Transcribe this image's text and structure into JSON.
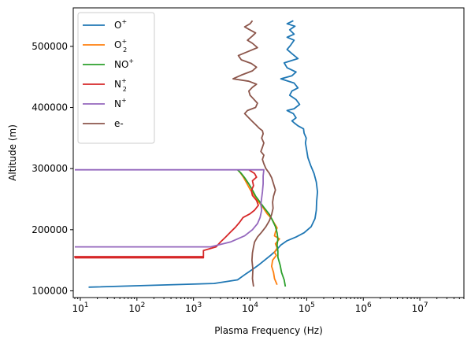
{
  "chart_data": {
    "type": "line",
    "title": "",
    "xlabel": "Plasma Frequency (Hz)",
    "ylabel": "Altitude (m)",
    "xscale": "log",
    "xlim": [
      7.5,
      60000000
    ],
    "ylim": [
      89000,
      563000
    ],
    "grid": false,
    "legend_position": "top-left",
    "x_ticks": [
      {
        "value": 10,
        "base": "10",
        "exp": "1"
      },
      {
        "value": 100,
        "base": "10",
        "exp": "2"
      },
      {
        "value": 1000,
        "base": "10",
        "exp": "3"
      },
      {
        "value": 10000,
        "base": "10",
        "exp": "4"
      },
      {
        "value": 100000,
        "base": "10",
        "exp": "5"
      },
      {
        "value": 1000000,
        "base": "10",
        "exp": "6"
      },
      {
        "value": 10000000,
        "base": "10",
        "exp": "7"
      }
    ],
    "y_ticks": [
      {
        "value": 100000,
        "label": "100000"
      },
      {
        "value": 200000,
        "label": "200000"
      },
      {
        "value": 300000,
        "label": "300000"
      },
      {
        "value": 400000,
        "label": "400000"
      },
      {
        "value": 500000,
        "label": "500000"
      }
    ],
    "series": [
      {
        "name": "O⁺",
        "color": "#1f77b4",
        "points": [
          [
            14,
            106000
          ],
          [
            2300,
            112000
          ],
          [
            6000,
            118000
          ],
          [
            8500,
            128000
          ],
          [
            11000,
            135000
          ],
          [
            14000,
            142000
          ],
          [
            18000,
            150000
          ],
          [
            23000,
            158000
          ],
          [
            28000,
            165000
          ],
          [
            35000,
            175000
          ],
          [
            45000,
            182000
          ],
          [
            65000,
            188000
          ],
          [
            90000,
            195000
          ],
          [
            120000,
            205000
          ],
          [
            140000,
            218000
          ],
          [
            148000,
            232000
          ],
          [
            150000,
            246000
          ],
          [
            155000,
            262000
          ],
          [
            148000,
            278000
          ],
          [
            135000,
            292000
          ],
          [
            118000,
            305000
          ],
          [
            105000,
            318000
          ],
          [
            100000,
            330000
          ],
          [
            95000,
            342000
          ],
          [
            98000,
            350000
          ],
          [
            90000,
            358000
          ],
          [
            88000,
            365000
          ],
          [
            70000,
            370000
          ],
          [
            60000,
            375000
          ],
          [
            55000,
            378000
          ],
          [
            65000,
            383000
          ],
          [
            58000,
            390000
          ],
          [
            45000,
            395000
          ],
          [
            60000,
            398000
          ],
          [
            75000,
            405000
          ],
          [
            65000,
            413000
          ],
          [
            50000,
            420000
          ],
          [
            55000,
            427000
          ],
          [
            70000,
            432000
          ],
          [
            60000,
            440000
          ],
          [
            35000,
            447000
          ],
          [
            55000,
            452000
          ],
          [
            65000,
            458000
          ],
          [
            45000,
            465000
          ],
          [
            40000,
            473000
          ],
          [
            70000,
            480000
          ],
          [
            55000,
            488000
          ],
          [
            45000,
            495000
          ],
          [
            52000,
            502000
          ],
          [
            60000,
            510000
          ],
          [
            45000,
            515000
          ],
          [
            60000,
            520000
          ],
          [
            50000,
            527000
          ],
          [
            62000,
            533000
          ],
          [
            45000,
            537000
          ],
          [
            58000,
            542000
          ]
        ]
      },
      {
        "name": "O₂⁺",
        "color": "#ff7f0e",
        "points": [
          [
            30000,
            110000
          ],
          [
            27000,
            120000
          ],
          [
            26000,
            130000
          ],
          [
            24000,
            140000
          ],
          [
            25000,
            150000
          ],
          [
            29000,
            158000
          ],
          [
            27000,
            163000
          ],
          [
            30000,
            170000
          ],
          [
            28000,
            177000
          ],
          [
            33000,
            185000
          ],
          [
            27000,
            190000
          ],
          [
            28000,
            196000
          ],
          [
            30000,
            203000
          ],
          [
            27000,
            210000
          ],
          [
            24000,
            218000
          ],
          [
            20000,
            226000
          ],
          [
            17000,
            236000
          ],
          [
            14000,
            246000
          ],
          [
            12000,
            256000
          ],
          [
            10000,
            266000
          ],
          [
            8500,
            278000
          ],
          [
            7500,
            287000
          ],
          [
            6500,
            295000
          ],
          [
            6000,
            298000
          ]
        ]
      },
      {
        "name": "NO⁺",
        "color": "#2ca02c",
        "points": [
          [
            42000,
            107000
          ],
          [
            40000,
            118000
          ],
          [
            36000,
            130000
          ],
          [
            34000,
            142000
          ],
          [
            31000,
            155000
          ],
          [
            31000,
            165000
          ],
          [
            30000,
            175000
          ],
          [
            31000,
            185000
          ],
          [
            30000,
            195000
          ],
          [
            28000,
            205000
          ],
          [
            25000,
            215000
          ],
          [
            22000,
            225000
          ],
          [
            18000,
            235000
          ],
          [
            15000,
            245000
          ],
          [
            12500,
            255000
          ],
          [
            11000,
            265000
          ],
          [
            9500,
            275000
          ],
          [
            8000,
            285000
          ],
          [
            7000,
            292000
          ],
          [
            6000,
            298000
          ]
        ]
      },
      {
        "name": "N₂⁺",
        "color": "#d62728",
        "points": [
          [
            8,
            154000
          ],
          [
            1500,
            154000
          ],
          [
            1500,
            155000
          ],
          [
            8,
            155000
          ],
          [
            8,
            156000
          ],
          [
            1500,
            156000
          ],
          [
            1500,
            166000
          ],
          [
            2500,
            172000
          ],
          [
            3000,
            180000
          ],
          [
            3700,
            188000
          ],
          [
            4500,
            196000
          ],
          [
            5500,
            204000
          ],
          [
            6500,
            212000
          ],
          [
            7500,
            220000
          ],
          [
            10000,
            226000
          ],
          [
            12000,
            232000
          ],
          [
            14000,
            240000
          ],
          [
            13000,
            248000
          ],
          [
            11000,
            256000
          ],
          [
            10500,
            264000
          ],
          [
            11500,
            272000
          ],
          [
            11000,
            280000
          ],
          [
            13000,
            286000
          ],
          [
            12000,
            292000
          ],
          [
            9500,
            298000
          ]
        ]
      },
      {
        "name": "N⁺",
        "color": "#9467bd",
        "points": [
          [
            8,
            172000
          ],
          [
            2000,
            172000
          ],
          [
            4500,
            180000
          ],
          [
            8000,
            190000
          ],
          [
            11000,
            200000
          ],
          [
            13500,
            210000
          ],
          [
            15000,
            220000
          ],
          [
            16000,
            232000
          ],
          [
            15500,
            242000
          ],
          [
            16000,
            252000
          ],
          [
            16500,
            262000
          ],
          [
            17000,
            275000
          ],
          [
            17000,
            288000
          ],
          [
            17500,
            298000
          ],
          [
            8,
            298000
          ]
        ]
      },
      {
        "name": "e-",
        "color": "#8c564b",
        "points": [
          [
            11500,
            107000
          ],
          [
            11500,
            107000
          ]
        ]
      }
    ]
  },
  "e_series_points": [
    [
      11500,
      107000
    ],
    [
      11000,
      120000
    ],
    [
      11200,
      135000
    ],
    [
      10800,
      150000
    ],
    [
      11000,
      162000
    ],
    [
      11500,
      172000
    ],
    [
      12000,
      180000
    ],
    [
      13500,
      188000
    ],
    [
      16000,
      196000
    ],
    [
      19000,
      205000
    ],
    [
      22000,
      215000
    ],
    [
      24000,
      225000
    ],
    [
      25500,
      235000
    ],
    [
      25000,
      245000
    ],
    [
      26000,
      255000
    ],
    [
      28000,
      265000
    ],
    [
      26000,
      275000
    ],
    [
      24000,
      285000
    ],
    [
      22000,
      292000
    ],
    [
      19000,
      300000
    ],
    [
      17500,
      308000
    ],
    [
      16500,
      315000
    ],
    [
      17500,
      322000
    ],
    [
      15500,
      328000
    ],
    [
      16500,
      335000
    ],
    [
      17500,
      342000
    ],
    [
      16000,
      350000
    ],
    [
      17000,
      357000
    ],
    [
      16500,
      362000
    ],
    [
      14500,
      366000
    ],
    [
      12500,
      372000
    ],
    [
      11000,
      377000
    ],
    [
      9500,
      383000
    ],
    [
      8000,
      390000
    ],
    [
      9000,
      395000
    ],
    [
      12500,
      400000
    ],
    [
      13500,
      407000
    ],
    [
      11500,
      414000
    ],
    [
      10000,
      420000
    ],
    [
      9500,
      427000
    ],
    [
      11000,
      433000
    ],
    [
      13000,
      438000
    ],
    [
      9500,
      443000
    ],
    [
      5000,
      447000
    ],
    [
      7000,
      453000
    ],
    [
      11000,
      460000
    ],
    [
      13000,
      466000
    ],
    [
      10500,
      472000
    ],
    [
      7000,
      478000
    ],
    [
      6200,
      485000
    ],
    [
      9500,
      492000
    ],
    [
      13500,
      498000
    ],
    [
      11000,
      505000
    ],
    [
      9000,
      510000
    ],
    [
      11000,
      517000
    ],
    [
      12500,
      522000
    ],
    [
      9500,
      528000
    ],
    [
      8000,
      532000
    ],
    [
      10000,
      537000
    ],
    [
      11000,
      542000
    ]
  ]
}
